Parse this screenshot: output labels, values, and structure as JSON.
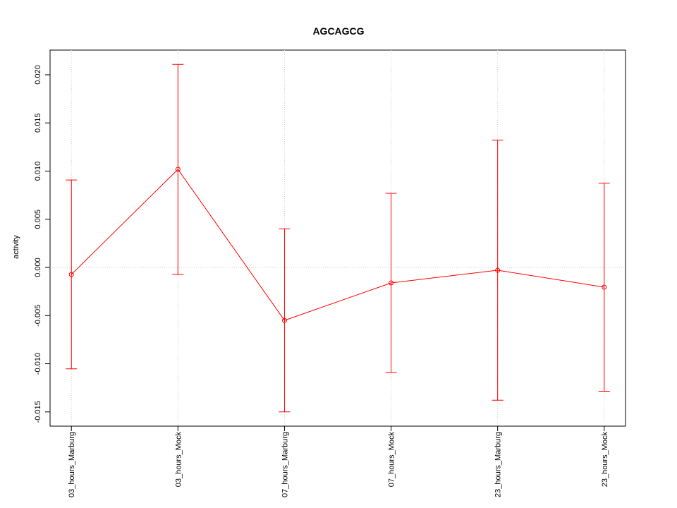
{
  "chart_data": {
    "type": "line",
    "title": "AGCAGCG",
    "y_label": "activity",
    "categories": [
      "03_hours_Marburg",
      "03_hours_Mock",
      "07_hours_Marburg",
      "07_hours_Mock",
      "23_hours_Marburg",
      "23_hours_Mock"
    ],
    "series": [
      {
        "color": "#ff0000",
        "values": [
          -0.00073,
          0.01018,
          -0.0055,
          -0.00161,
          -0.00029,
          -0.00205
        ],
        "errors": [
          0.0098,
          0.0109,
          0.0095,
          0.0093,
          0.0135,
          0.0108
        ]
      }
    ],
    "ylim": [
      -0.01648,
      0.02256
    ],
    "yticks": [
      -0.015,
      {
        "value": -0.01,
        "label": "-0.010"
      },
      -0.005,
      {
        "value": 0,
        "label": "0.000"
      },
      0.005,
      {
        "value": 0.01,
        "label": "0.010"
      },
      0.015,
      {
        "value": 0.02,
        "label": "0.020"
      }
    ],
    "hline": 0,
    "grid": true
  }
}
